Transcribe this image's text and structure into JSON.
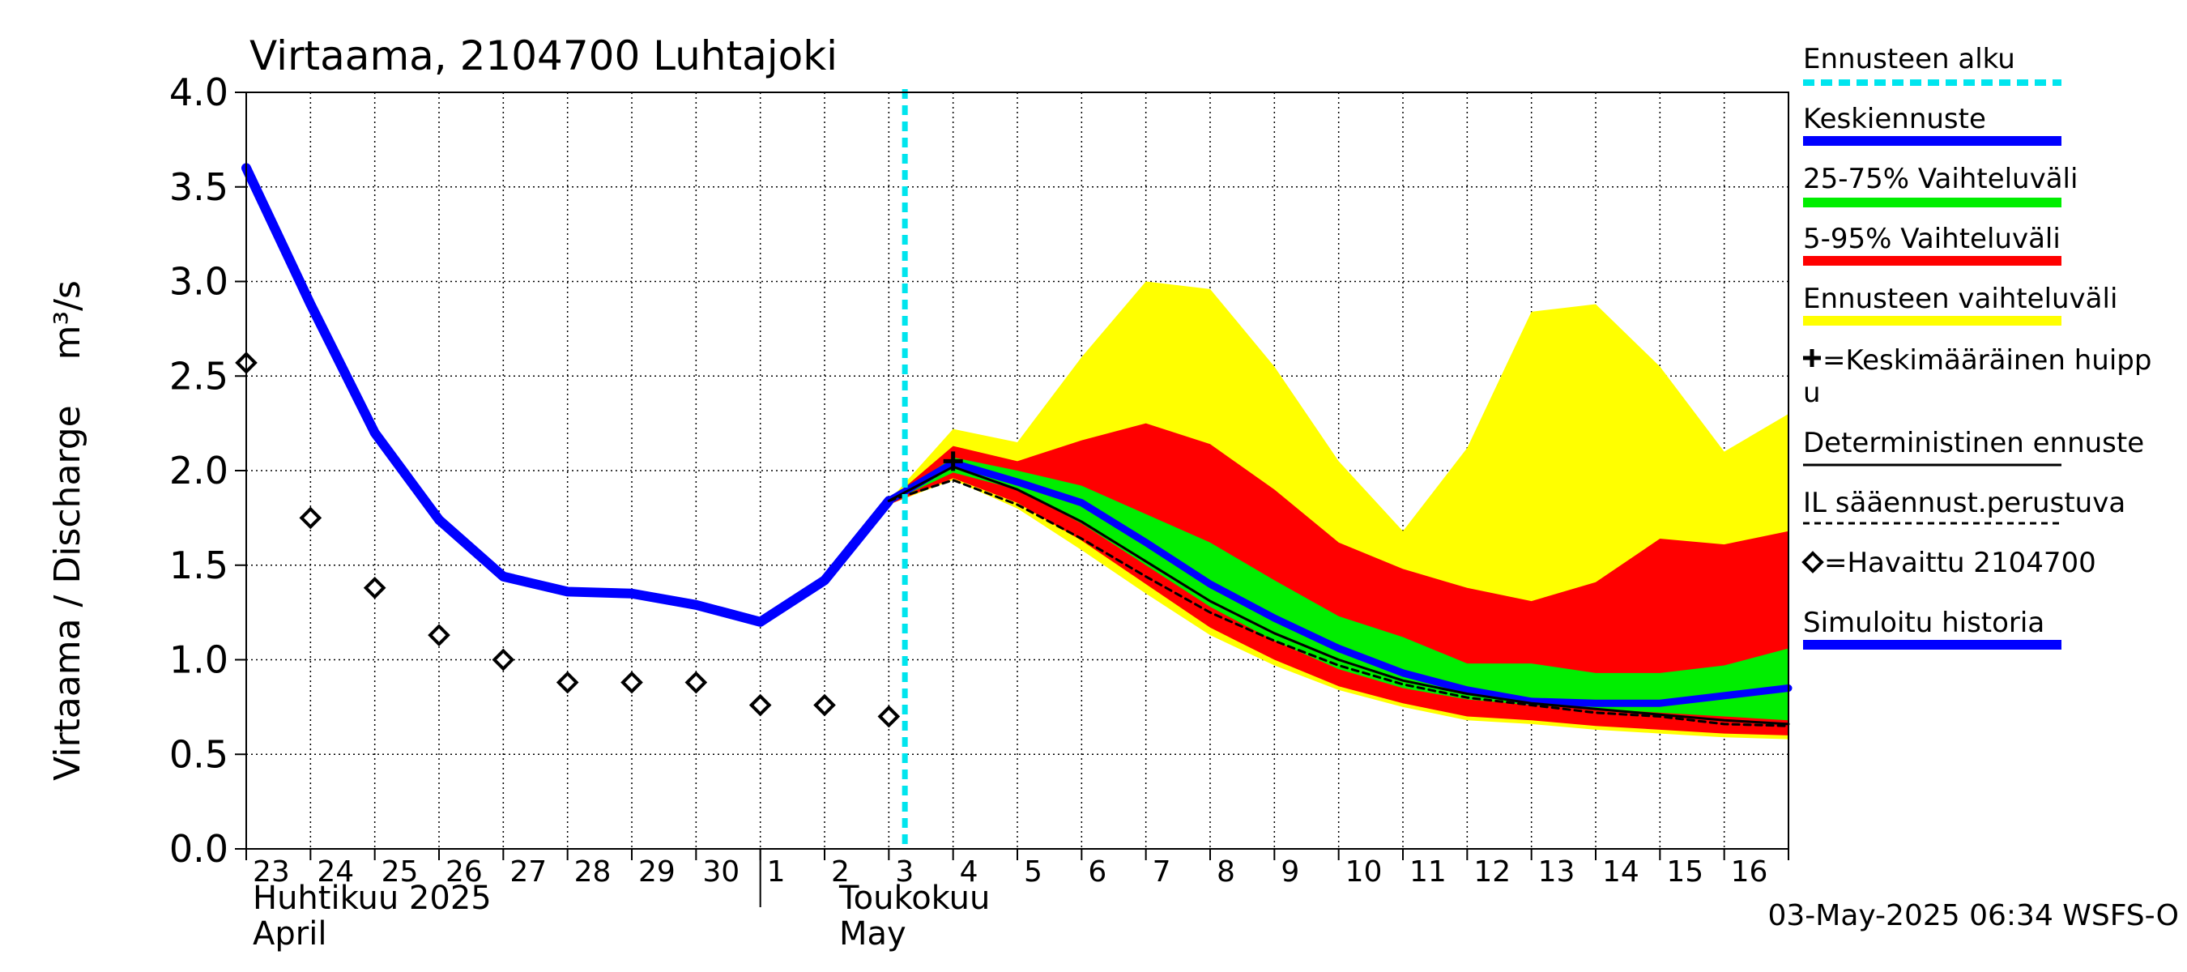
{
  "chart_data": {
    "type": "line",
    "title": "Virtaama, 2104700 Luhtajoki",
    "ylabel": "Virtaama / Discharge    m³/s",
    "ylim": [
      0,
      4.0
    ],
    "yticks": [
      "0.0",
      "0.5",
      "1.0",
      "1.5",
      "2.0",
      "2.5",
      "3.0",
      "3.5",
      "4.0"
    ],
    "x_days": [
      "2025-04-23",
      "2025-04-24",
      "2025-04-25",
      "2025-04-26",
      "2025-04-27",
      "2025-04-28",
      "2025-04-29",
      "2025-04-30",
      "2025-05-01",
      "2025-05-02",
      "2025-05-03",
      "2025-05-04",
      "2025-05-05",
      "2025-05-06",
      "2025-05-07",
      "2025-05-08",
      "2025-05-09",
      "2025-05-10",
      "2025-05-11",
      "2025-05-12",
      "2025-05-13",
      "2025-05-14",
      "2025-05-15",
      "2025-05-16",
      "2025-05-17"
    ],
    "day_labels": [
      "23",
      "24",
      "25",
      "26",
      "27",
      "28",
      "29",
      "30",
      "1",
      "2",
      "3",
      "4",
      "5",
      "6",
      "7",
      "8",
      "9",
      "10",
      "11",
      "12",
      "13",
      "14",
      "15",
      "16"
    ],
    "month_labels": [
      {
        "line1": "Huhtikuu  2025",
        "line2": "April"
      },
      {
        "line1": "Toukokuu",
        "line2": "May"
      }
    ],
    "forecast_start": "2025-05-03 06:00",
    "timestamp": "03-May-2025 06:34 WSFS-O",
    "simulated_history": {
      "x": [
        "2025-04-23",
        "2025-04-24",
        "2025-04-25",
        "2025-04-26",
        "2025-04-27",
        "2025-04-28",
        "2025-04-29",
        "2025-04-30",
        "2025-05-01",
        "2025-05-02",
        "2025-05-03"
      ],
      "y": [
        3.6,
        2.88,
        2.2,
        1.74,
        1.44,
        1.36,
        1.35,
        1.29,
        1.2,
        1.42,
        1.84
      ]
    },
    "observed": {
      "x": [
        "2025-04-23",
        "2025-04-24",
        "2025-04-25",
        "2025-04-26",
        "2025-04-27",
        "2025-04-28",
        "2025-04-29",
        "2025-04-30",
        "2025-05-01",
        "2025-05-02",
        "2025-05-03"
      ],
      "y": [
        2.57,
        1.75,
        1.38,
        1.13,
        1.0,
        0.88,
        0.88,
        0.88,
        0.76,
        0.76,
        0.7
      ]
    },
    "forecast_x": [
      "2025-05-03",
      "2025-05-04",
      "2025-05-05",
      "2025-05-06",
      "2025-05-07",
      "2025-05-08",
      "2025-05-09",
      "2025-05-10",
      "2025-05-11",
      "2025-05-12",
      "2025-05-13",
      "2025-05-14",
      "2025-05-15",
      "2025-05-16",
      "2025-05-17"
    ],
    "range_min_max": {
      "lower": [
        1.82,
        1.95,
        1.8,
        1.58,
        1.35,
        1.13,
        0.97,
        0.84,
        0.75,
        0.68,
        0.66,
        0.63,
        0.61,
        0.59,
        0.58
      ],
      "upper": [
        1.84,
        2.22,
        2.15,
        2.6,
        3.0,
        2.96,
        2.55,
        2.05,
        1.68,
        2.12,
        2.84,
        2.88,
        2.55,
        2.1,
        2.3
      ]
    },
    "range_5_95": {
      "lower": [
        1.82,
        1.96,
        1.83,
        1.63,
        1.4,
        1.17,
        1.0,
        0.86,
        0.77,
        0.7,
        0.68,
        0.65,
        0.63,
        0.61,
        0.6
      ],
      "upper": [
        1.84,
        2.13,
        2.05,
        2.16,
        2.25,
        2.14,
        1.9,
        1.62,
        1.48,
        1.38,
        1.31,
        1.41,
        1.64,
        1.61,
        1.68
      ]
    },
    "range_25_75": {
      "lower": [
        1.83,
        1.99,
        1.9,
        1.72,
        1.5,
        1.28,
        1.1,
        0.95,
        0.85,
        0.79,
        0.76,
        0.74,
        0.72,
        0.7,
        0.68
      ],
      "upper": [
        1.84,
        2.07,
        2.0,
        1.92,
        1.77,
        1.62,
        1.42,
        1.23,
        1.12,
        0.98,
        0.98,
        0.93,
        0.93,
        0.97,
        1.06
      ]
    },
    "mean_forecast": [
      1.84,
      2.04,
      1.94,
      1.83,
      1.62,
      1.4,
      1.22,
      1.06,
      0.93,
      0.84,
      0.78,
      0.77,
      0.77,
      0.81,
      0.85
    ],
    "deterministic": [
      1.84,
      2.02,
      1.9,
      1.73,
      1.52,
      1.31,
      1.14,
      1.0,
      0.89,
      0.82,
      0.77,
      0.74,
      0.71,
      0.68,
      0.66
    ],
    "il_weather_based": [
      1.84,
      1.95,
      1.82,
      1.64,
      1.44,
      1.25,
      1.1,
      0.97,
      0.87,
      0.8,
      0.76,
      0.72,
      0.7,
      0.66,
      0.65
    ],
    "mean_peak": {
      "x": "2025-05-04",
      "y": 2.05
    },
    "colors": {
      "range_min_max": "#ffff00",
      "range_5_95": "#ff0000",
      "range_25_75": "#00ee00",
      "mean_forecast": "#0000ff",
      "simulated_history": "#0000ff",
      "forecast_start": "#00e5ee",
      "deterministic": "#000000",
      "il_weather_based": "#000000",
      "observed": "#000000"
    },
    "legend": [
      {
        "key": "forecast_start",
        "label": "Ennusteen alku",
        "style": "dashed-cyan"
      },
      {
        "key": "mean_forecast",
        "label": "Keskiennuste",
        "style": "thick-blue"
      },
      {
        "key": "range_25_75",
        "label": "25-75% Vaihteluväli",
        "style": "thick-green"
      },
      {
        "key": "range_5_95",
        "label": "5-95% Vaihteluväli",
        "style": "thick-red"
      },
      {
        "key": "range_min_max",
        "label": "Ennusteen vaihteluväli",
        "style": "thick-yellow"
      },
      {
        "key": "mean_peak",
        "label": "=Keskimääräinen huipp",
        "label2": "u",
        "style": "plus"
      },
      {
        "key": "deterministic",
        "label": "Deterministinen ennuste",
        "style": "thin-black"
      },
      {
        "key": "il_weather_based",
        "label": "IL sääennust.perustuva",
        "style": "dashed-black"
      },
      {
        "key": "observed",
        "label": "=Havaittu 2104700",
        "style": "diamond"
      },
      {
        "key": "simulated_history",
        "label": "Simuloitu historia",
        "style": "thick-blue"
      }
    ]
  }
}
